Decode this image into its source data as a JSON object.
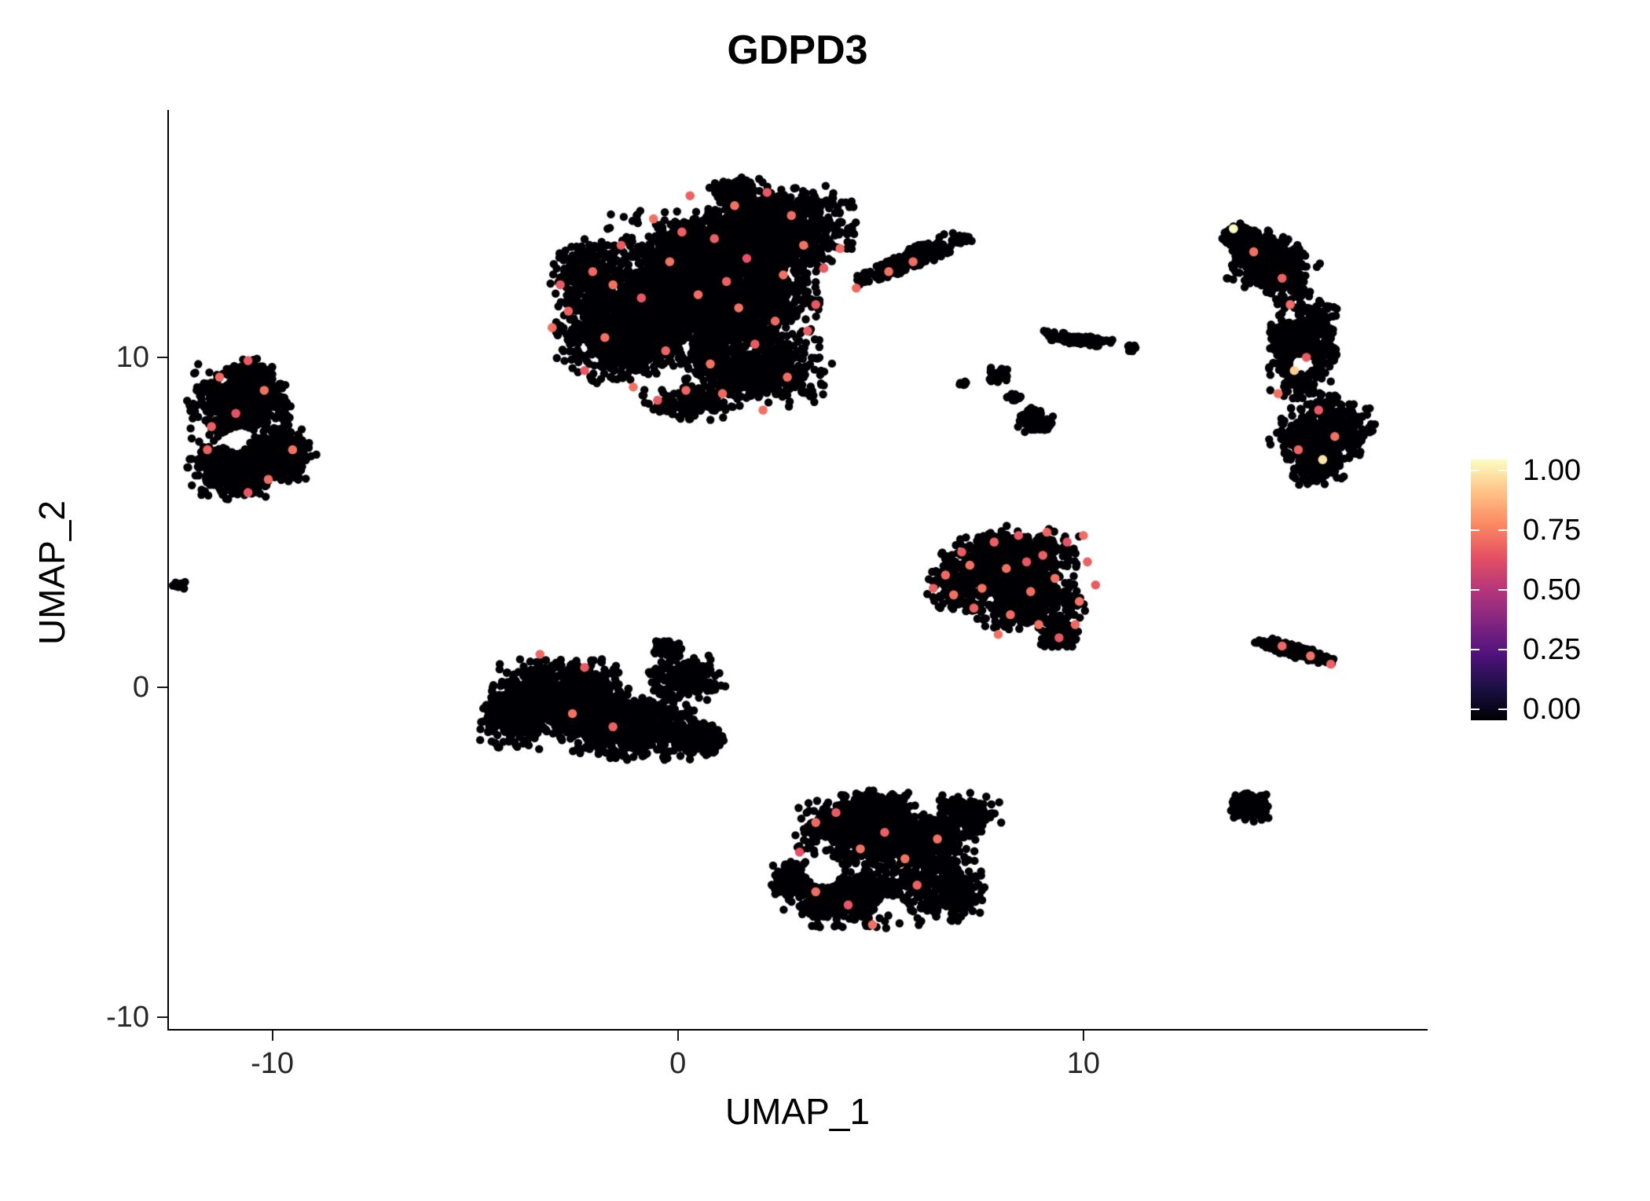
{
  "title": "GDPD3",
  "axes": {
    "x": {
      "label": "UMAP_1",
      "ticks": [
        {
          "label": "-10",
          "value": -10
        },
        {
          "label": "0",
          "value": 0
        },
        {
          "label": "10",
          "value": 10
        }
      ]
    },
    "y": {
      "label": "UMAP_2",
      "ticks": [
        {
          "label": "10",
          "value": 10
        },
        {
          "label": "0",
          "value": 0
        },
        {
          "label": "-10",
          "value": -10
        }
      ]
    }
  },
  "colorbar": {
    "ticks": [
      {
        "label": "1.00",
        "value": 1.0
      },
      {
        "label": "0.75",
        "value": 0.75
      },
      {
        "label": "0.50",
        "value": 0.5
      },
      {
        "label": "0.25",
        "value": 0.25
      },
      {
        "label": "0.00",
        "value": 0.0
      }
    ],
    "stops": [
      "#000004",
      "#1c1044",
      "#4f127b",
      "#812581",
      "#b5367a",
      "#e55064",
      "#fb8861",
      "#fec287",
      "#fcfdbf"
    ]
  },
  "chart_data": {
    "type": "scatter",
    "title": "GDPD3",
    "xlabel": "UMAP_1",
    "ylabel": "UMAP_2",
    "xlim": [
      -12.55,
      18.45
    ],
    "ylim": [
      -10.36,
      17.5
    ],
    "grid": false,
    "legend_position": "right",
    "point_radius_px": 5.2,
    "highlight_radius_px": 5.8,
    "base_value": 0.0,
    "seed": 42,
    "clusters": [
      {
        "name": "top-center",
        "blobs": [
          {
            "cx": 0.8,
            "cy": 12.2,
            "rx": 2.7,
            "ry": 2.3,
            "n": 2600
          },
          {
            "cx": -1.3,
            "cy": 10.9,
            "rx": 1.7,
            "ry": 1.7,
            "n": 950
          },
          {
            "cx": 2.5,
            "cy": 13.9,
            "rx": 1.9,
            "ry": 1.3,
            "n": 800
          },
          {
            "cx": 1.9,
            "cy": 9.6,
            "rx": 1.9,
            "ry": 1.1,
            "n": 600
          },
          {
            "cx": -2.2,
            "cy": 12.6,
            "rx": 1.0,
            "ry": 1.0,
            "n": 250
          },
          {
            "cx": 1.5,
            "cy": 15.0,
            "rx": 0.8,
            "ry": 0.5,
            "n": 120
          },
          {
            "cx": 0.3,
            "cy": 8.6,
            "rx": 1.2,
            "ry": 0.5,
            "n": 150
          },
          {
            "cx": 5.6,
            "cy": 12.9,
            "rx": 1.4,
            "ry": 0.3,
            "rot": 0.48,
            "n": 330
          },
          {
            "cx": 7.0,
            "cy": 13.6,
            "rx": 0.25,
            "ry": 0.18,
            "n": 30
          }
        ]
      },
      {
        "name": "left",
        "blobs": [
          {
            "cx": -10.8,
            "cy": 8.7,
            "rx": 1.3,
            "ry": 1.1,
            "n": 520
          },
          {
            "cx": -10.9,
            "cy": 6.7,
            "rx": 1.2,
            "ry": 1.0,
            "n": 480
          },
          {
            "cx": -9.7,
            "cy": 7.1,
            "rx": 0.8,
            "ry": 0.9,
            "n": 260
          },
          {
            "cx": -10.5,
            "cy": 9.6,
            "rx": 0.5,
            "ry": 0.4,
            "n": 80
          }
        ],
        "holes": [
          {
            "cx": -10.9,
            "cy": 7.5,
            "r": 0.34
          }
        ]
      },
      {
        "name": "left-speck",
        "blobs": [
          {
            "cx": -12.3,
            "cy": 3.1,
            "rx": 0.18,
            "ry": 0.16,
            "n": 14
          }
        ]
      },
      {
        "name": "right-crescent",
        "blobs": [
          {
            "cx": 13.9,
            "cy": 13.6,
            "rx": 0.6,
            "ry": 0.4,
            "rot": -0.5,
            "n": 130
          },
          {
            "cx": 14.6,
            "cy": 12.8,
            "rx": 1.1,
            "ry": 0.9,
            "rot": -0.5,
            "n": 480
          },
          {
            "cx": 15.4,
            "cy": 10.4,
            "rx": 0.85,
            "ry": 1.7,
            "n": 620
          },
          {
            "cx": 15.9,
            "cy": 7.7,
            "rx": 1.15,
            "ry": 1.2,
            "rot": -0.4,
            "n": 520
          },
          {
            "cx": 15.7,
            "cy": 6.6,
            "rx": 0.6,
            "ry": 0.5,
            "n": 120
          }
        ],
        "holes": [
          {
            "cx": 15.4,
            "cy": 9.8,
            "r": 0.3
          },
          {
            "cx": 15.1,
            "cy": 11.3,
            "r": 0.2
          }
        ]
      },
      {
        "name": "mid-right",
        "blobs": [
          {
            "cx": 8.2,
            "cy": 3.9,
            "rx": 1.7,
            "ry": 1.0,
            "n": 560
          },
          {
            "cx": 8.7,
            "cy": 2.6,
            "rx": 1.4,
            "ry": 0.9,
            "n": 420
          },
          {
            "cx": 7.0,
            "cy": 3.1,
            "rx": 0.9,
            "ry": 0.8,
            "n": 220
          },
          {
            "cx": 9.4,
            "cy": 1.6,
            "rx": 0.5,
            "ry": 0.4,
            "n": 90
          }
        ]
      },
      {
        "name": "small-streak",
        "blobs": [
          {
            "cx": 9.8,
            "cy": 10.55,
            "rx": 1.0,
            "ry": 0.16,
            "rot": -0.18,
            "n": 150
          },
          {
            "cx": 11.2,
            "cy": 10.3,
            "rx": 0.15,
            "ry": 0.12,
            "n": 15
          }
        ]
      },
      {
        "name": "small-mid",
        "blobs": [
          {
            "cx": 7.9,
            "cy": 9.5,
            "rx": 0.35,
            "ry": 0.3,
            "n": 40
          },
          {
            "cx": 8.8,
            "cy": 8.1,
            "rx": 0.5,
            "ry": 0.38,
            "n": 70
          },
          {
            "cx": 8.3,
            "cy": 8.8,
            "rx": 0.22,
            "ry": 0.18,
            "n": 18
          },
          {
            "cx": 7.0,
            "cy": 9.2,
            "rx": 0.15,
            "ry": 0.12,
            "n": 12
          }
        ]
      },
      {
        "name": "bottom-left",
        "blobs": [
          {
            "cx": -2.9,
            "cy": -0.3,
            "rx": 1.7,
            "ry": 1.2,
            "n": 900
          },
          {
            "cx": -1.2,
            "cy": -1.2,
            "rx": 1.7,
            "ry": 1.0,
            "n": 700
          },
          {
            "cx": -4.0,
            "cy": -0.9,
            "rx": 0.9,
            "ry": 1.0,
            "n": 300
          },
          {
            "cx": 0.2,
            "cy": 0.3,
            "rx": 1.0,
            "ry": 0.7,
            "n": 230
          },
          {
            "cx": 0.4,
            "cy": -1.5,
            "rx": 0.8,
            "ry": 0.6,
            "n": 160
          },
          {
            "cx": -0.3,
            "cy": 1.2,
            "rx": 0.4,
            "ry": 0.3,
            "n": 60
          }
        ]
      },
      {
        "name": "bottom-center",
        "blobs": [
          {
            "cx": 4.5,
            "cy": -4.3,
            "rx": 1.6,
            "ry": 1.1,
            "n": 560
          },
          {
            "cx": 6.1,
            "cy": -4.8,
            "rx": 1.3,
            "ry": 1.0,
            "n": 450
          },
          {
            "cx": 4.3,
            "cy": -6.3,
            "rx": 1.7,
            "ry": 1.0,
            "n": 560
          },
          {
            "cx": 6.6,
            "cy": -6.2,
            "rx": 1.0,
            "ry": 0.9,
            "n": 260
          },
          {
            "cx": 7.2,
            "cy": -3.8,
            "rx": 0.8,
            "ry": 0.6,
            "n": 170
          },
          {
            "cx": 5.0,
            "cy": -3.6,
            "rx": 0.8,
            "ry": 0.5,
            "n": 150
          },
          {
            "cx": 2.7,
            "cy": -5.8,
            "rx": 0.5,
            "ry": 0.6,
            "n": 120
          }
        ],
        "holes": [
          {
            "cx": 3.6,
            "cy": -5.6,
            "r": 0.45
          },
          {
            "cx": 5.3,
            "cy": -6.6,
            "r": 0.28
          }
        ]
      },
      {
        "name": "right-small-streak",
        "blobs": [
          {
            "cx": 15.2,
            "cy": 1.1,
            "rx": 1.0,
            "ry": 0.2,
            "rot": -0.32,
            "n": 220
          }
        ]
      },
      {
        "name": "right-small-blob",
        "blobs": [
          {
            "cx": 14.1,
            "cy": -3.6,
            "rx": 0.5,
            "ry": 0.5,
            "n": 170
          }
        ]
      }
    ],
    "highlights": [
      [
        -2.1,
        12.6,
        0.68
      ],
      [
        -1.4,
        13.4,
        0.65
      ],
      [
        -0.6,
        14.2,
        0.7
      ],
      [
        0.3,
        14.9,
        0.66
      ],
      [
        1.4,
        14.6,
        0.7
      ],
      [
        2.2,
        15.0,
        0.64
      ],
      [
        2.8,
        14.3,
        0.69
      ],
      [
        0.9,
        13.6,
        0.66
      ],
      [
        -0.2,
        12.9,
        0.7
      ],
      [
        1.7,
        13.0,
        0.63
      ],
      [
        2.6,
        12.5,
        0.7
      ],
      [
        -2.7,
        11.4,
        0.66
      ],
      [
        -1.8,
        10.6,
        0.7
      ],
      [
        -0.9,
        11.8,
        0.64
      ],
      [
        0.5,
        11.9,
        0.69
      ],
      [
        1.2,
        12.3,
        0.66
      ],
      [
        3.1,
        13.4,
        0.7
      ],
      [
        3.6,
        12.7,
        0.65
      ],
      [
        4.4,
        12.1,
        0.68
      ],
      [
        5.2,
        12.6,
        0.7
      ],
      [
        -2.3,
        9.6,
        0.64
      ],
      [
        -1.1,
        9.1,
        0.7
      ],
      [
        -0.3,
        10.2,
        0.67
      ],
      [
        0.8,
        9.8,
        0.7
      ],
      [
        1.9,
        10.4,
        0.65
      ],
      [
        2.7,
        9.4,
        0.69
      ],
      [
        3.2,
        10.8,
        0.66
      ],
      [
        -3.1,
        10.9,
        0.7
      ],
      [
        -0.5,
        8.7,
        0.65
      ],
      [
        1.1,
        8.9,
        0.68
      ],
      [
        2.1,
        8.4,
        0.7
      ],
      [
        0.1,
        13.8,
        0.66
      ],
      [
        4.0,
        13.3,
        0.69
      ],
      [
        -1.6,
        12.2,
        0.7
      ],
      [
        3.4,
        11.6,
        0.64
      ],
      [
        2.4,
        11.1,
        0.68
      ],
      [
        1.5,
        11.5,
        0.7
      ],
      [
        -2.9,
        12.2,
        0.65
      ],
      [
        5.8,
        12.9,
        0.69
      ],
      [
        0.2,
        9.0,
        0.67
      ],
      [
        -11.3,
        9.4,
        0.68
      ],
      [
        -10.6,
        9.9,
        0.65
      ],
      [
        -10.2,
        9.0,
        0.7
      ],
      [
        -11.5,
        7.9,
        0.66
      ],
      [
        -10.1,
        6.3,
        0.69
      ],
      [
        -10.6,
        5.9,
        0.64
      ],
      [
        -9.5,
        7.2,
        0.7
      ],
      [
        -11.6,
        7.2,
        0.66
      ],
      [
        -10.9,
        8.3,
        0.63
      ],
      [
        14.2,
        13.2,
        0.7
      ],
      [
        14.9,
        12.4,
        0.66
      ],
      [
        15.1,
        11.6,
        0.69
      ],
      [
        15.5,
        10.0,
        0.65
      ],
      [
        14.8,
        8.9,
        0.7
      ],
      [
        15.3,
        7.2,
        0.67
      ],
      [
        16.2,
        7.6,
        0.7
      ],
      [
        15.8,
        8.4,
        0.64
      ],
      [
        13.7,
        13.9,
        1.0
      ],
      [
        15.9,
        6.9,
        0.95
      ],
      [
        15.2,
        9.6,
        0.9
      ],
      [
        6.6,
        3.4,
        0.68
      ],
      [
        7.0,
        4.1,
        0.65
      ],
      [
        7.5,
        3.0,
        0.7
      ],
      [
        7.8,
        4.4,
        0.66
      ],
      [
        8.1,
        3.6,
        0.7
      ],
      [
        8.4,
        4.6,
        0.64
      ],
      [
        8.7,
        2.9,
        0.69
      ],
      [
        9.0,
        4.0,
        0.66
      ],
      [
        9.3,
        3.3,
        0.7
      ],
      [
        9.6,
        4.4,
        0.63
      ],
      [
        9.9,
        2.6,
        0.7
      ],
      [
        10.1,
        3.8,
        0.66
      ],
      [
        8.9,
        1.9,
        0.7
      ],
      [
        9.4,
        1.5,
        0.64
      ],
      [
        8.2,
        2.2,
        0.69
      ],
      [
        7.3,
        2.4,
        0.66
      ],
      [
        6.8,
        2.8,
        0.7
      ],
      [
        10.3,
        3.1,
        0.65
      ],
      [
        9.8,
        1.9,
        0.68
      ],
      [
        7.9,
        1.6,
        0.7
      ],
      [
        8.6,
        3.8,
        0.64
      ],
      [
        10.0,
        4.6,
        0.69
      ],
      [
        6.3,
        3.0,
        0.66
      ],
      [
        7.2,
        3.7,
        0.7
      ],
      [
        9.1,
        4.7,
        0.67
      ],
      [
        -3.4,
        1.0,
        0.68
      ],
      [
        -2.3,
        0.6,
        0.65
      ],
      [
        -2.6,
        -0.8,
        0.7
      ],
      [
        -1.6,
        -1.2,
        0.66
      ],
      [
        3.4,
        -4.1,
        0.68
      ],
      [
        3.9,
        -3.8,
        0.65
      ],
      [
        4.5,
        -4.9,
        0.7
      ],
      [
        5.1,
        -4.4,
        0.66
      ],
      [
        5.6,
        -5.2,
        0.7
      ],
      [
        4.2,
        -6.6,
        0.64
      ],
      [
        3.4,
        -6.2,
        0.69
      ],
      [
        5.9,
        -6.0,
        0.66
      ],
      [
        6.4,
        -4.6,
        0.7
      ],
      [
        3.0,
        -5.0,
        0.63
      ],
      [
        4.8,
        -7.2,
        0.7
      ],
      [
        14.9,
        1.25,
        0.68
      ],
      [
        15.6,
        0.95,
        0.7
      ],
      [
        16.1,
        0.7,
        0.66
      ]
    ]
  }
}
